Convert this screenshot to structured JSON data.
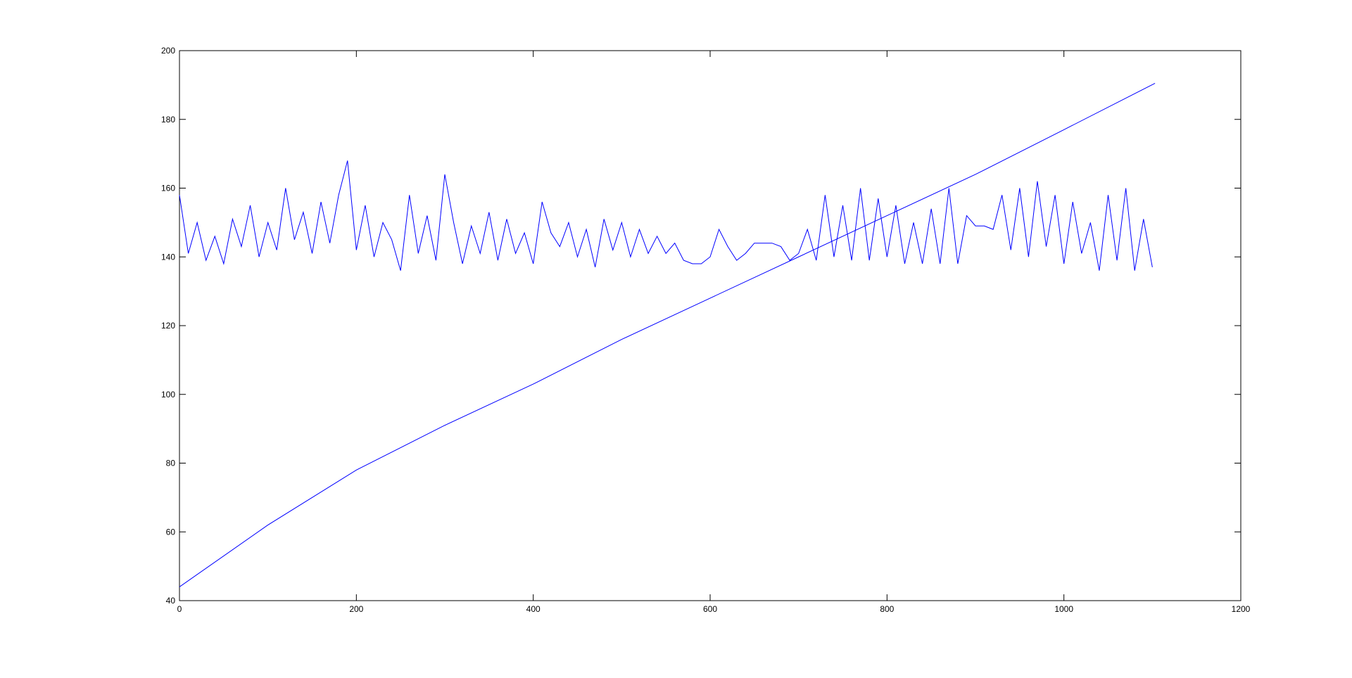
{
  "chart_data": {
    "type": "line",
    "xlim": [
      0,
      1200
    ],
    "xticks": [
      0,
      200,
      400,
      600,
      800,
      1000,
      1200
    ],
    "ylim": [
      40,
      200
    ],
    "yticks": [
      40,
      60,
      80,
      100,
      120,
      140,
      160,
      180,
      200
    ],
    "grid": false,
    "series": [
      {
        "color": "#0000ff",
        "x": [
          0,
          10,
          20,
          30,
          40,
          50,
          60,
          70,
          80,
          90,
          100,
          110,
          120,
          130,
          140,
          150,
          160,
          170,
          180,
          190,
          200,
          210,
          220,
          230,
          240,
          250,
          260,
          270,
          280,
          290,
          300,
          310,
          320,
          330,
          340,
          350,
          360,
          370,
          380,
          390,
          400,
          410,
          420,
          430,
          440,
          450,
          460,
          470,
          480,
          490,
          500,
          510,
          520,
          530,
          540,
          550,
          560,
          570,
          580,
          590,
          600,
          610,
          620,
          630,
          640,
          650,
          660,
          670,
          680,
          690,
          700,
          710,
          720,
          730,
          740,
          750,
          760,
          770,
          780,
          790,
          800,
          810,
          820,
          830,
          840,
          850,
          860,
          870,
          880,
          890,
          900,
          910,
          920,
          930,
          940,
          950,
          960,
          970,
          980,
          990,
          1000,
          1010,
          1020,
          1030,
          1040,
          1050,
          1060,
          1070,
          1080,
          1090,
          1100
        ],
        "values": [
          158,
          141,
          150,
          139,
          146,
          138,
          151,
          143,
          155,
          140,
          150,
          142,
          160,
          145,
          153,
          141,
          156,
          144,
          158,
          168,
          142,
          155,
          140,
          150,
          145,
          136,
          158,
          141,
          152,
          139,
          164,
          150,
          138,
          149,
          141,
          153,
          139,
          151,
          141,
          147,
          138,
          156,
          147,
          143,
          150,
          140,
          148,
          137,
          151,
          142,
          150,
          140,
          148,
          141,
          146,
          141,
          144,
          139,
          138,
          138,
          140,
          148,
          143,
          139,
          141,
          144,
          144,
          144,
          143,
          139,
          141,
          148,
          139,
          158,
          140,
          155,
          139,
          160,
          139,
          157,
          140,
          155,
          138,
          150,
          138,
          154,
          138,
          160,
          138,
          152,
          149,
          149,
          148,
          158,
          142,
          160,
          140,
          162,
          143,
          158,
          138,
          156,
          141,
          150,
          136,
          158,
          139,
          160,
          136,
          151,
          137
        ]
      },
      {
        "color": "#0000ff",
        "x": [
          0,
          100,
          200,
          300,
          400,
          500,
          600,
          700,
          800,
          900,
          1000,
          1103
        ],
        "values": [
          44,
          62,
          78,
          91,
          103,
          116,
          128,
          140,
          152,
          164,
          177,
          190.5
        ]
      }
    ]
  }
}
